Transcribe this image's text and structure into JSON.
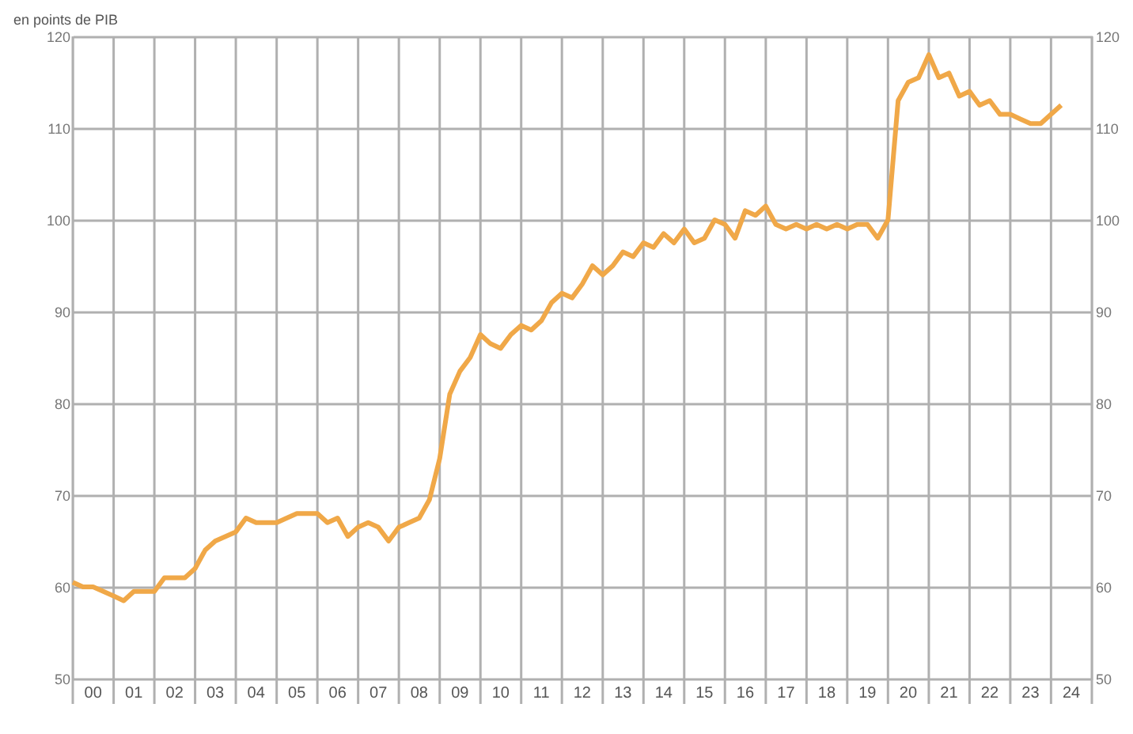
{
  "chart_data": {
    "type": "line",
    "ylabel": "en points de PIB",
    "x": [
      "2000-01",
      "2000-04",
      "2000-07",
      "2000-10",
      "2001-01",
      "2001-04",
      "2001-07",
      "2001-10",
      "2002-01",
      "2002-04",
      "2002-07",
      "2002-10",
      "2003-01",
      "2003-04",
      "2003-07",
      "2003-10",
      "2004-01",
      "2004-04",
      "2004-07",
      "2004-10",
      "2005-01",
      "2005-04",
      "2005-07",
      "2005-10",
      "2006-01",
      "2006-04",
      "2006-07",
      "2006-10",
      "2007-01",
      "2007-04",
      "2007-07",
      "2007-10",
      "2008-01",
      "2008-04",
      "2008-07",
      "2008-10",
      "2009-01",
      "2009-04",
      "2009-07",
      "2009-10",
      "2010-01",
      "2010-04",
      "2010-07",
      "2010-10",
      "2011-01",
      "2011-04",
      "2011-07",
      "2011-10",
      "2012-01",
      "2012-04",
      "2012-07",
      "2012-10",
      "2013-01",
      "2013-04",
      "2013-07",
      "2013-10",
      "2014-01",
      "2014-04",
      "2014-07",
      "2014-10",
      "2015-01",
      "2015-04",
      "2015-07",
      "2015-10",
      "2016-01",
      "2016-04",
      "2016-07",
      "2016-10",
      "2017-01",
      "2017-04",
      "2017-07",
      "2017-10",
      "2018-01",
      "2018-04",
      "2018-07",
      "2018-10",
      "2019-01",
      "2019-04",
      "2019-07",
      "2019-10",
      "2020-01",
      "2020-04",
      "2020-07",
      "2020-10",
      "2021-01",
      "2021-04",
      "2021-07",
      "2021-10",
      "2022-01",
      "2022-04",
      "2022-07",
      "2022-10",
      "2023-01",
      "2023-04",
      "2023-07",
      "2023-10",
      "2024-01",
      "2024-04"
    ],
    "series": [
      {
        "color": "#f0a848",
        "values": [
          60.5,
          60,
          60,
          59.5,
          59,
          58.5,
          59.5,
          59.5,
          59.5,
          61,
          61,
          61,
          62,
          64,
          65,
          65.5,
          66,
          67.5,
          67,
          67,
          67,
          67.5,
          68,
          68,
          68,
          67,
          67.5,
          65.5,
          66.5,
          67,
          66.5,
          65,
          66.5,
          67,
          67.5,
          69.5,
          74,
          81,
          83.5,
          85,
          87.5,
          86.5,
          86,
          87.5,
          88.5,
          88,
          89,
          91,
          92,
          91.5,
          93,
          95,
          94,
          95,
          96.5,
          96,
          97.5,
          97,
          98.5,
          97.5,
          99,
          97.5,
          98,
          100,
          99.5,
          98,
          101,
          100.5,
          101.5,
          99.5,
          99,
          99.5,
          99,
          99.5,
          99,
          99.5,
          99,
          99.5,
          99.5,
          98,
          100,
          113,
          115,
          115.5,
          118,
          115.5,
          116,
          113.5,
          114,
          112.5,
          113,
          111.5,
          111.5,
          111,
          110.5,
          110.5,
          111.5,
          112.5
        ]
      }
    ],
    "xlim": [
      "2000-01",
      "2025-01"
    ],
    "xticks": [
      {
        "value": "2000-01",
        "label": null
      },
      {
        "value": "2000-07",
        "label": "00"
      },
      {
        "value": "2001-01",
        "label": null
      },
      {
        "value": "2001-07",
        "label": "01"
      },
      {
        "value": "2002-01",
        "label": null
      },
      {
        "value": "2002-07",
        "label": "02"
      },
      {
        "value": "2003-01",
        "label": null
      },
      {
        "value": "2003-07",
        "label": "03"
      },
      {
        "value": "2004-01",
        "label": null
      },
      {
        "value": "2004-07",
        "label": "04"
      },
      {
        "value": "2005-01",
        "label": null
      },
      {
        "value": "2005-07",
        "label": "05"
      },
      {
        "value": "2006-01",
        "label": null
      },
      {
        "value": "2006-07",
        "label": "06"
      },
      {
        "value": "2007-01",
        "label": null
      },
      {
        "value": "2007-07",
        "label": "07"
      },
      {
        "value": "2008-01",
        "label": null
      },
      {
        "value": "2008-07",
        "label": "08"
      },
      {
        "value": "2009-01",
        "label": null
      },
      {
        "value": "2009-07",
        "label": "09"
      },
      {
        "value": "2010-01",
        "label": null
      },
      {
        "value": "2010-07",
        "label": "10"
      },
      {
        "value": "2011-01",
        "label": null
      },
      {
        "value": "2011-07",
        "label": "11"
      },
      {
        "value": "2012-01",
        "label": null
      },
      {
        "value": "2012-07",
        "label": "12"
      },
      {
        "value": "2013-01",
        "label": null
      },
      {
        "value": "2013-07",
        "label": "13"
      },
      {
        "value": "2014-01",
        "label": null
      },
      {
        "value": "2014-07",
        "label": "14"
      },
      {
        "value": "2015-01",
        "label": null
      },
      {
        "value": "2015-07",
        "label": "15"
      },
      {
        "value": "2016-01",
        "label": null
      },
      {
        "value": "2016-07",
        "label": "16"
      },
      {
        "value": "2017-01",
        "label": null
      },
      {
        "value": "2017-07",
        "label": "17"
      },
      {
        "value": "2018-01",
        "label": null
      },
      {
        "value": "2018-07",
        "label": "18"
      },
      {
        "value": "2019-01",
        "label": null
      },
      {
        "value": "2019-07",
        "label": "19"
      },
      {
        "value": "2020-01",
        "label": null
      },
      {
        "value": "2020-07",
        "label": "20"
      },
      {
        "value": "2021-01",
        "label": null
      },
      {
        "value": "2021-07",
        "label": "21"
      },
      {
        "value": "2022-01",
        "label": null
      },
      {
        "value": "2022-07",
        "label": "22"
      },
      {
        "value": "2023-01",
        "label": null
      },
      {
        "value": "2023-07",
        "label": "23"
      },
      {
        "value": "2024-01",
        "label": null
      },
      {
        "value": "2024-07",
        "label": "24"
      },
      {
        "value": "2025-01",
        "label": null
      }
    ],
    "ylim": [
      50,
      120
    ],
    "yticks": [
      50,
      60,
      70,
      80,
      90,
      100,
      110,
      120
    ],
    "y2lim": [
      50,
      120
    ],
    "y2ticks": [
      50,
      60,
      70,
      80,
      90,
      100,
      110,
      120
    ],
    "grid": true,
    "marker": "none",
    "line_style": "solid"
  }
}
